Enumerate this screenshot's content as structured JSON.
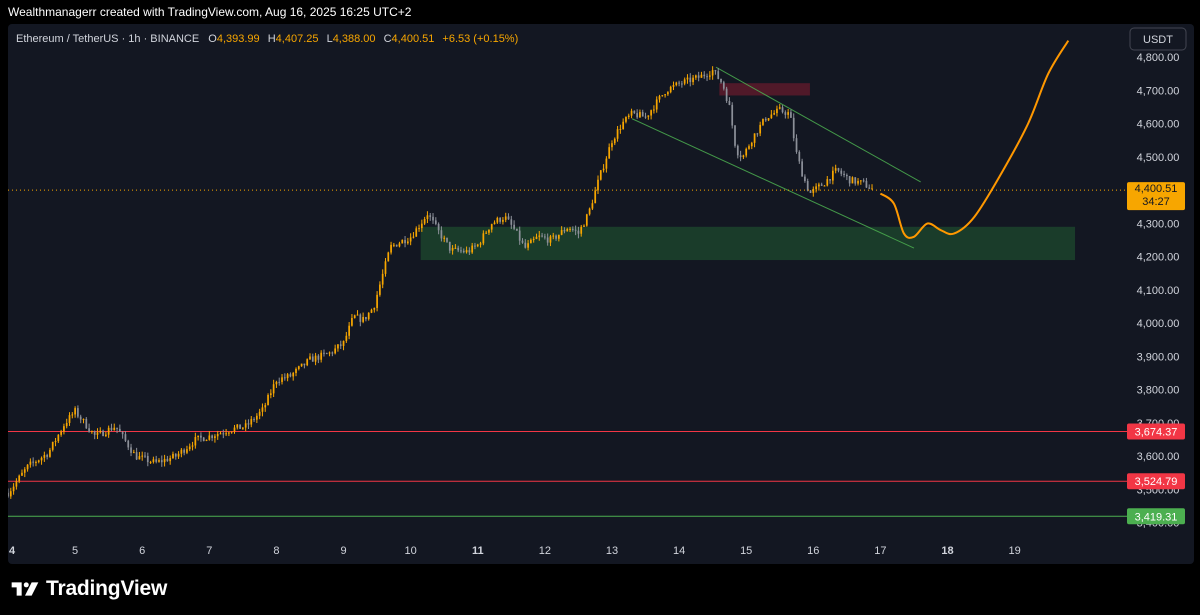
{
  "header": {
    "attribution": "Wealthmanagerr created with TradingView.com, Aug 16, 2025 16:25 UTC+2"
  },
  "legend": {
    "symbol": "Ethereum / TetherUS · 1h · BINANCE",
    "open_label": "O",
    "open": "4,393.99",
    "high_label": "H",
    "high": "4,407.25",
    "low_label": "L",
    "low": "4,388.00",
    "close_label": "C",
    "close": "4,400.51",
    "change": "+6.53 (+0.15%)"
  },
  "currency_button": "USDT",
  "price_badge": {
    "price": "4,400.51",
    "countdown": "34:27"
  },
  "brand": {
    "name": "TradingView"
  },
  "colors": {
    "background": "#131722",
    "candle_up": "#F7A600",
    "candle_down": "#8C9099",
    "resistance_line": "#F23645",
    "support_line": "#4CAF50",
    "projection": "#FF9800",
    "demand_zone": "#1E4A2E",
    "supply_zone": "#5C1A2A",
    "channel": "#4CAF50"
  },
  "chart_data": {
    "type": "candlestick",
    "x_unit": "day of month (Aug 2025)",
    "x_tick_labels": [
      {
        "x": 4,
        "label": "4",
        "bold": true
      },
      {
        "x": 5,
        "label": "5"
      },
      {
        "x": 6,
        "label": "6"
      },
      {
        "x": 7,
        "label": "7"
      },
      {
        "x": 8,
        "label": "8"
      },
      {
        "x": 9,
        "label": "9"
      },
      {
        "x": 10,
        "label": "10"
      },
      {
        "x": 11,
        "label": "11",
        "bold": true
      },
      {
        "x": 12,
        "label": "12"
      },
      {
        "x": 13,
        "label": "13"
      },
      {
        "x": 14,
        "label": "14"
      },
      {
        "x": 15,
        "label": "15"
      },
      {
        "x": 16,
        "label": "16"
      },
      {
        "x": 17,
        "label": "17"
      },
      {
        "x": 18,
        "label": "18",
        "bold": true
      },
      {
        "x": 19,
        "label": "19"
      }
    ],
    "y_tick_labels": [
      "4,800.00",
      "4,700.00",
      "4,600.00",
      "4,500.00",
      "4,300.00",
      "4,200.00",
      "4,100.00",
      "4,000.00",
      "3,900.00",
      "3,800.00",
      "3,700.00",
      "3,600.00",
      "3,500.00",
      "3,400.00"
    ],
    "y_ticks": [
      4800,
      4700,
      4600,
      4500,
      4300,
      4200,
      4100,
      4000,
      3900,
      3800,
      3700,
      3600,
      3500,
      3400
    ],
    "xlim": [
      4,
      20.6
    ],
    "ylim": [
      3360,
      4900
    ],
    "last_price": 4400.51,
    "price_path": [
      [
        4.0,
        3490
      ],
      [
        4.3,
        3570
      ],
      [
        4.6,
        3610
      ],
      [
        4.85,
        3700
      ],
      [
        5.0,
        3735
      ],
      [
        5.3,
        3660
      ],
      [
        5.6,
        3690
      ],
      [
        5.9,
        3600
      ],
      [
        6.2,
        3580
      ],
      [
        6.5,
        3600
      ],
      [
        6.8,
        3650
      ],
      [
        7.0,
        3660
      ],
      [
        7.3,
        3680
      ],
      [
        7.55,
        3690
      ],
      [
        7.8,
        3740
      ],
      [
        8.0,
        3830
      ],
      [
        8.2,
        3840
      ],
      [
        8.5,
        3890
      ],
      [
        8.8,
        3910
      ],
      [
        9.0,
        3940
      ],
      [
        9.15,
        4020
      ],
      [
        9.3,
        4010
      ],
      [
        9.45,
        4050
      ],
      [
        9.7,
        4230
      ],
      [
        10.0,
        4260
      ],
      [
        10.15,
        4300
      ],
      [
        10.25,
        4330
      ],
      [
        10.4,
        4280
      ],
      [
        10.6,
        4220
      ],
      [
        10.85,
        4215
      ],
      [
        11.0,
        4235
      ],
      [
        11.2,
        4300
      ],
      [
        11.4,
        4320
      ],
      [
        11.55,
        4280
      ],
      [
        11.7,
        4225
      ],
      [
        11.9,
        4260
      ],
      [
        12.1,
        4250
      ],
      [
        12.35,
        4290
      ],
      [
        12.5,
        4270
      ],
      [
        12.65,
        4330
      ],
      [
        12.8,
        4430
      ],
      [
        13.0,
        4550
      ],
      [
        13.15,
        4600
      ],
      [
        13.3,
        4630
      ],
      [
        13.5,
        4620
      ],
      [
        13.8,
        4700
      ],
      [
        14.0,
        4720
      ],
      [
        14.3,
        4740
      ],
      [
        14.5,
        4760
      ],
      [
        14.65,
        4720
      ],
      [
        14.75,
        4650
      ],
      [
        14.85,
        4520
      ],
      [
        14.95,
        4500
      ],
      [
        15.1,
        4560
      ],
      [
        15.3,
        4620
      ],
      [
        15.5,
        4640
      ],
      [
        15.65,
        4630
      ],
      [
        15.75,
        4510
      ],
      [
        15.85,
        4440
      ],
      [
        15.95,
        4390
      ],
      [
        16.15,
        4420
      ],
      [
        16.35,
        4460
      ],
      [
        16.55,
        4430
      ],
      [
        16.75,
        4420
      ],
      [
        16.9,
        4400.51
      ]
    ],
    "price_scale_labels": [
      {
        "label": "3,674.37",
        "value": 3674.37
      },
      {
        "label": "3,524.79",
        "value": 3524.79
      },
      {
        "label": "3,419.31",
        "value": 3419.31
      }
    ],
    "horizontal_levels": [
      {
        "value": 3674.37,
        "color": "#F23645"
      },
      {
        "value": 3524.79,
        "color": "#F23645"
      },
      {
        "value": 3419.31,
        "color": "#4CAF50"
      }
    ],
    "zones": [
      {
        "type": "demand",
        "x0": 10.15,
        "x1": 19.9,
        "y0": 4190,
        "y1": 4290
      },
      {
        "type": "supply",
        "x0": 14.6,
        "x1": 15.95,
        "y0": 4685,
        "y1": 4722
      }
    ],
    "channel": {
      "upper": [
        [
          14.55,
          4770
        ],
        [
          17.6,
          4425
        ]
      ],
      "lower": [
        [
          13.3,
          4615
        ],
        [
          17.5,
          4226
        ]
      ]
    },
    "projection": [
      [
        17.0,
        4390
      ],
      [
        17.2,
        4360
      ],
      [
        17.35,
        4270
      ],
      [
        17.5,
        4260
      ],
      [
        17.7,
        4300
      ],
      [
        17.9,
        4280
      ],
      [
        18.1,
        4270
      ],
      [
        18.4,
        4320
      ],
      [
        18.8,
        4450
      ],
      [
        19.2,
        4600
      ],
      [
        19.5,
        4750
      ],
      [
        19.8,
        4850
      ]
    ]
  }
}
